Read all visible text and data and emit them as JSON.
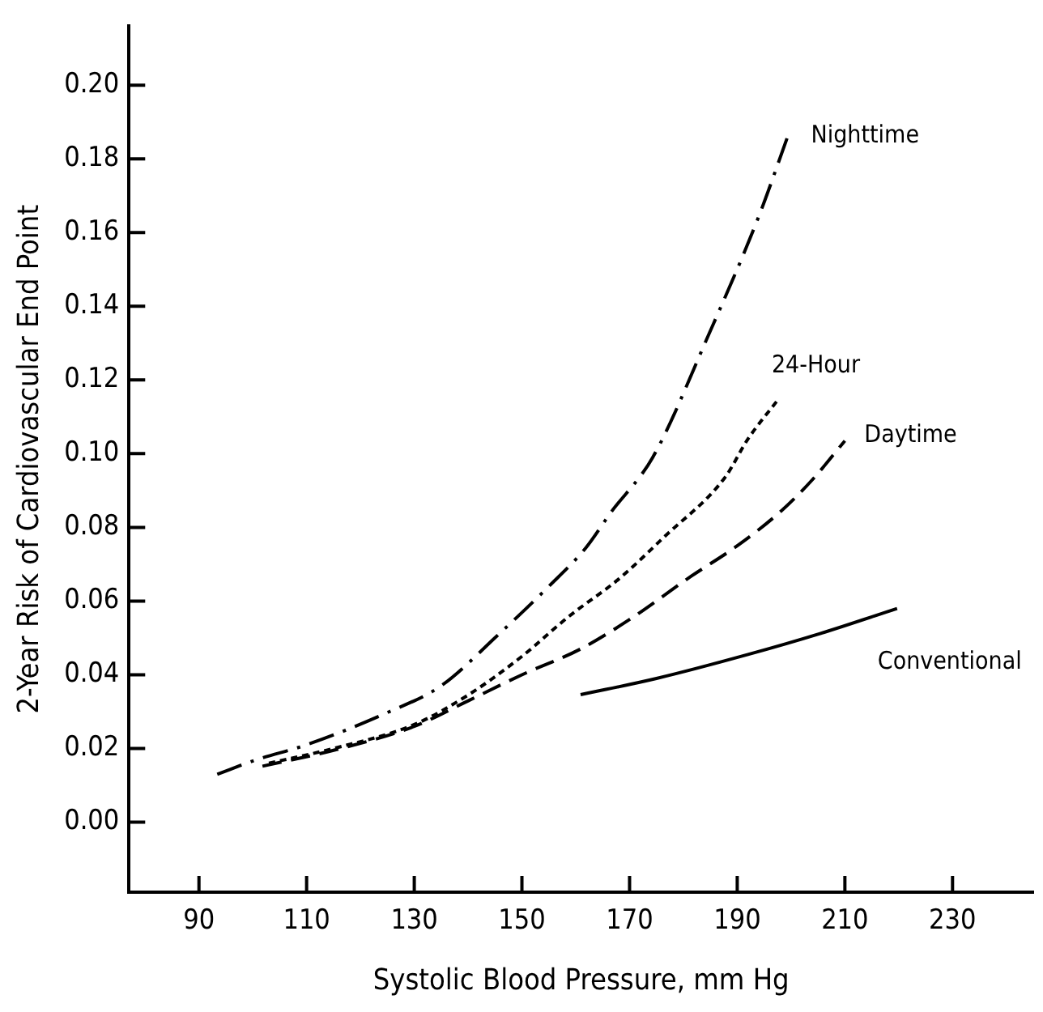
{
  "chart_data": {
    "type": "line",
    "xlabel": "Systolic Blood Pressure, mm Hg",
    "ylabel": "2-Year Risk of Cardiovascular End Point",
    "xlim": [
      77,
      245
    ],
    "xticks": [
      90,
      110,
      130,
      150,
      170,
      190,
      210,
      230
    ],
    "ylim": [
      -0.019,
      0.216
    ],
    "yticks": [
      {
        "value": 0,
        "label": "0.00"
      },
      {
        "value": 0.02,
        "label": "0.02"
      },
      {
        "value": 0.04,
        "label": "0.04"
      },
      {
        "value": 0.06,
        "label": "0.06"
      },
      {
        "value": 0.08,
        "label": "0.08"
      },
      {
        "value": 0.1,
        "label": "0.10"
      },
      {
        "value": 0.12,
        "label": "0.12"
      },
      {
        "value": 0.14,
        "label": "0.14"
      },
      {
        "value": 0.16,
        "label": "0.16"
      },
      {
        "value": 0.18,
        "label": "0.18"
      },
      {
        "value": 0.2,
        "label": "0.20"
      }
    ],
    "grid": false,
    "legend": false,
    "marker": "none",
    "series": [
      {
        "name": "Nighttime",
        "color": "#000000",
        "line_style": "dashdot",
        "x": [
          93.4,
          100.6,
          110,
          125.4,
          135,
          145.4,
          155,
          161.9,
          166.5,
          174.3,
          184.6,
          193.9,
          199.5
        ],
        "values": [
          0.013,
          0.0169,
          0.021,
          0.03,
          0.037,
          0.0506,
          0.064,
          0.0745,
          0.084,
          0.099,
          0.132,
          0.164,
          0.1866
        ]
      },
      {
        "name": "24-Hour",
        "color": "#000000",
        "line_style": "dotted",
        "x": [
          103,
          115,
          130,
          140.1,
          150,
          158.7,
          168,
          176.5,
          187.7,
          192,
          197.6
        ],
        "values": [
          0.016,
          0.02,
          0.0265,
          0.0346,
          0.045,
          0.0558,
          0.066,
          0.0775,
          0.0935,
          0.104,
          0.1147
        ]
      },
      {
        "name": "Daytime",
        "color": "#000000",
        "line_style": "dashed",
        "x": [
          101.8,
          115,
          130,
          140.1,
          150,
          160.9,
          170,
          181.4,
          190,
          198.2,
          204,
          210
        ],
        "values": [
          0.0152,
          0.0195,
          0.026,
          0.033,
          0.04,
          0.047,
          0.055,
          0.0667,
          0.075,
          0.0845,
          0.093,
          0.1035
        ]
      },
      {
        "name": "Conventional",
        "color": "#000000",
        "line_style": "solid",
        "x": [
          160.9,
          175,
          192,
          205,
          219.7
        ],
        "values": [
          0.0346,
          0.039,
          0.0455,
          0.051,
          0.058
        ]
      }
    ]
  }
}
